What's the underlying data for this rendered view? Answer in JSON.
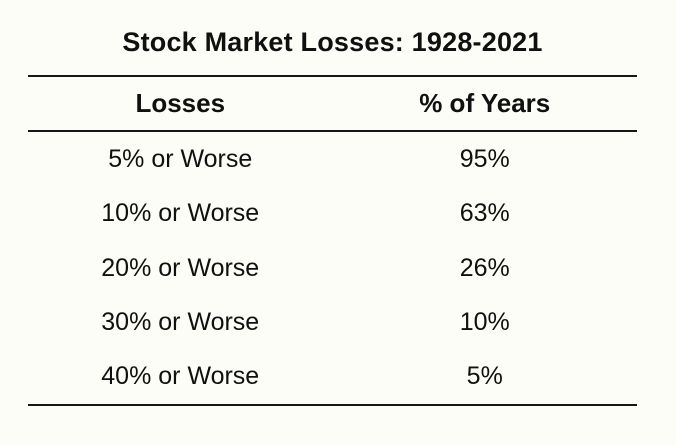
{
  "chart_data": {
    "type": "table",
    "title": "Stock Market Losses: 1928-2021",
    "columns": [
      "Losses",
      "% of Years"
    ],
    "rows": [
      [
        "5% or Worse",
        "95%"
      ],
      [
        "10% or Worse",
        "63%"
      ],
      [
        "20% or Worse",
        "26%"
      ],
      [
        "30% or Worse",
        "10%"
      ],
      [
        "40% or Worse",
        "5%"
      ]
    ],
    "numeric": {
      "loss_threshold_pct": [
        5,
        10,
        20,
        30,
        40
      ],
      "pct_of_years": [
        95,
        63,
        26,
        10,
        5
      ]
    },
    "layout": {
      "columns_alignment": "center",
      "rules": [
        "above-header",
        "below-header",
        "below-last-row"
      ]
    }
  },
  "colors": {
    "background": "#fdfdf7",
    "text": "#101010",
    "rule": "#161616"
  }
}
